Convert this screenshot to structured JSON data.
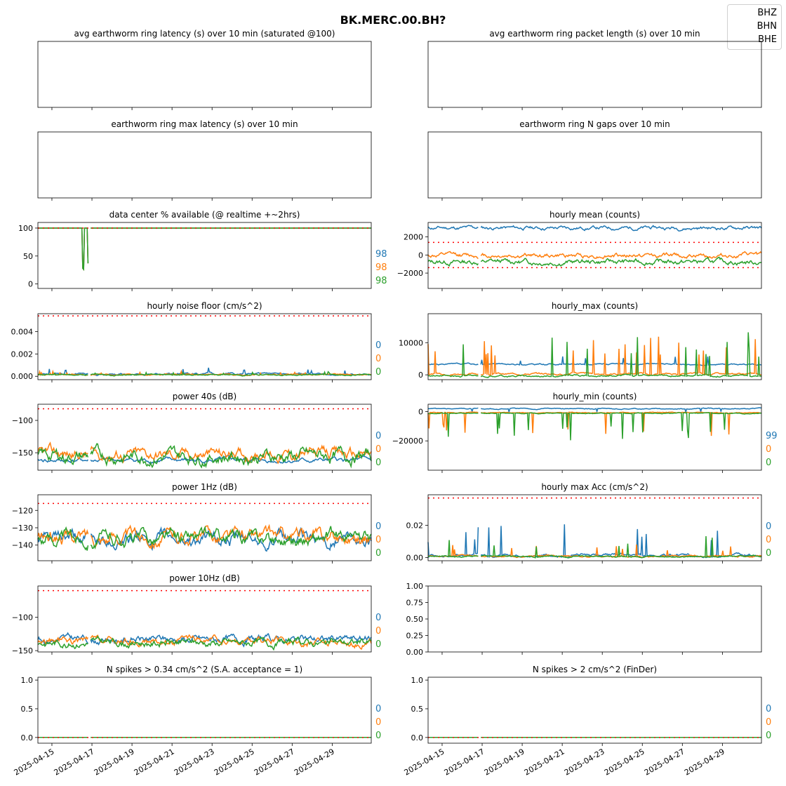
{
  "figure": {
    "title": "BK.MERC.00.BH?",
    "legend": [
      "BHZ",
      "BHN",
      "BHE"
    ],
    "colors": {
      "BHZ": "#1f77b4",
      "BHN": "#ff7f0e",
      "BHE": "#2ca02c",
      "threshold": "#ff0000"
    },
    "x_ticks": [
      "2025-04-15",
      "2025-04-17",
      "2025-04-19",
      "2025-04-21",
      "2025-04-23",
      "2025-04-25",
      "2025-04-27",
      "2025-04-29"
    ],
    "x_range": [
      "2025-04-14",
      "2025-04-30"
    ]
  },
  "chart_data": [
    {
      "id": "latency",
      "type": "line",
      "title": "avg earthworm ring latency (s)   over 10 min (saturated @100)",
      "row": 0,
      "col": 0,
      "yticks": [],
      "series": [],
      "percentages": []
    },
    {
      "id": "packet",
      "type": "line",
      "title": "avg earthworm ring packet length (s)   over 10 min",
      "row": 0,
      "col": 1,
      "yticks": [],
      "series": [],
      "percentages": []
    },
    {
      "id": "maxlat",
      "type": "line",
      "title": "earthworm ring max latency (s)   over 10 min",
      "row": 1,
      "col": 0,
      "yticks": [],
      "series": [],
      "percentages": []
    },
    {
      "id": "ngaps",
      "type": "line",
      "title": "earthworm ring N gaps   over 10 min",
      "row": 1,
      "col": 1,
      "yticks": [],
      "series": [],
      "percentages": []
    },
    {
      "id": "avail",
      "type": "line",
      "title": "data center % available (@ realtime +~2hrs)",
      "row": 2,
      "col": 0,
      "ylim": [
        -8,
        110
      ],
      "yticks": [
        "0",
        "50",
        "100"
      ],
      "ytick_values": [
        0,
        50,
        100
      ],
      "thresholds": [
        100
      ],
      "percentages": [
        "98",
        "98",
        "98"
      ],
      "series": [
        {
          "channel": "BHZ",
          "kind": "avail",
          "base": 100,
          "amp": 0,
          "seed": 1
        },
        {
          "channel": "BHN",
          "kind": "avail",
          "base": 100,
          "amp": 0,
          "seed": 2
        },
        {
          "channel": "BHE",
          "kind": "avail",
          "base": 100,
          "amp": 0,
          "seed": 3
        }
      ]
    },
    {
      "id": "hmean",
      "type": "line",
      "title": "hourly mean (counts)",
      "row": 2,
      "col": 1,
      "ylim": [
        -3700,
        3600
      ],
      "yticks": [
        "−2000",
        "0",
        "2000"
      ],
      "ytick_values": [
        -2000,
        0,
        2000
      ],
      "thresholds": [
        1400,
        -1400
      ],
      "percentages": [],
      "series": [
        {
          "channel": "BHZ",
          "kind": "smooth",
          "base": 3000,
          "amp": 180,
          "seed": 11
        },
        {
          "channel": "BHN",
          "kind": "smooth",
          "base": -50,
          "amp": 220,
          "seed": 12
        },
        {
          "channel": "BHE",
          "kind": "smooth",
          "base": -750,
          "amp": 250,
          "seed": 13
        }
      ]
    },
    {
      "id": "noise",
      "type": "line",
      "title": "hourly noise floor (cm/s^2)",
      "row": 3,
      "col": 0,
      "ylim": [
        -0.0003,
        0.0056
      ],
      "yticks": [
        "0.000",
        "0.002",
        "0.004"
      ],
      "ytick_values": [
        0,
        0.002,
        0.004
      ],
      "thresholds": [
        0.0054
      ],
      "percentages": [
        "0",
        "0",
        "0"
      ],
      "series": [
        {
          "channel": "BHZ",
          "kind": "spiky",
          "base": 0.0002,
          "amp": 8e-05,
          "spike": 0.0007,
          "seed": 21
        },
        {
          "channel": "BHN",
          "kind": "spiky",
          "base": 0.00015,
          "amp": 6e-05,
          "spike": 0.0003,
          "seed": 22
        },
        {
          "channel": "BHE",
          "kind": "spiky",
          "base": 0.00013,
          "amp": 5e-05,
          "spike": 0.0003,
          "seed": 23
        }
      ]
    },
    {
      "id": "hmax",
      "type": "line",
      "title": "hourly_max (counts)",
      "row": 3,
      "col": 1,
      "ylim": [
        -1500,
        19000
      ],
      "yticks": [
        "0",
        "10000"
      ],
      "ytick_values": [
        0,
        10000
      ],
      "thresholds": [],
      "percentages": [],
      "series": [
        {
          "channel": "BHZ",
          "kind": "spiky",
          "base": 3300,
          "amp": 200,
          "spike": 2500,
          "seed": 31
        },
        {
          "channel": "BHN",
          "kind": "spiky",
          "base": 300,
          "amp": 250,
          "spike": 12000,
          "seed": 32
        },
        {
          "channel": "BHE",
          "kind": "spiky",
          "base": -300,
          "amp": 250,
          "spike": 14000,
          "seed": 33
        }
      ]
    },
    {
      "id": "p40",
      "type": "line",
      "title": "power 40s (dB)",
      "row": 4,
      "col": 0,
      "ylim": [
        -177,
        -75
      ],
      "yticks": [
        "−150",
        "−100"
      ],
      "ytick_values": [
        -150,
        -100
      ],
      "thresholds": [
        -82
      ],
      "percentages": [
        "0",
        "0",
        "0"
      ],
      "series": [
        {
          "channel": "BHZ",
          "kind": "smooth",
          "base": -162,
          "amp": 3,
          "seed": 41
        },
        {
          "channel": "BHN",
          "kind": "smooth",
          "base": -152,
          "amp": 8,
          "seed": 42
        },
        {
          "channel": "BHE",
          "kind": "smooth",
          "base": -155,
          "amp": 9,
          "seed": 43
        }
      ]
    },
    {
      "id": "hmin",
      "type": "line",
      "title": "hourly_min (counts)",
      "row": 4,
      "col": 1,
      "ylim": [
        -40000,
        5000
      ],
      "yticks": [
        "−20000",
        "0"
      ],
      "ytick_values": [
        -20000,
        0
      ],
      "thresholds": [],
      "percentages": [
        "99",
        "0",
        "0"
      ],
      "series": [
        {
          "channel": "BHZ",
          "kind": "dip",
          "base": 2000,
          "amp": 300,
          "spike": 2500,
          "seed": 51
        },
        {
          "channel": "BHN",
          "kind": "dip",
          "base": -800,
          "amp": 250,
          "spike": 15000,
          "seed": 52
        },
        {
          "channel": "BHE",
          "kind": "dip",
          "base": -1200,
          "amp": 250,
          "spike": 17000,
          "seed": 53
        }
      ]
    },
    {
      "id": "p1hz",
      "type": "line",
      "title": "power 1Hz (dB)",
      "row": 5,
      "col": 0,
      "ylim": [
        -149,
        -111
      ],
      "yticks": [
        "−140",
        "−130",
        "−120"
      ],
      "ytick_values": [
        -140,
        -130,
        -120
      ],
      "thresholds": [
        -116
      ],
      "percentages": [
        "0",
        "0",
        "0"
      ],
      "series": [
        {
          "channel": "BHZ",
          "kind": "smooth",
          "base": -137,
          "amp": 3.5,
          "seed": 61
        },
        {
          "channel": "BHN",
          "kind": "smooth",
          "base": -135,
          "amp": 3.5,
          "seed": 62
        },
        {
          "channel": "BHE",
          "kind": "smooth",
          "base": -136,
          "amp": 3.5,
          "seed": 63
        }
      ]
    },
    {
      "id": "hmaxacc",
      "type": "line",
      "title": "hourly max Acc (cm/s^2)",
      "row": 5,
      "col": 1,
      "ylim": [
        -0.002,
        0.039
      ],
      "yticks": [
        "0.00",
        "0.02"
      ],
      "ytick_values": [
        0,
        0.02
      ],
      "thresholds": [
        0.037
      ],
      "percentages": [
        "0",
        "0",
        "0"
      ],
      "series": [
        {
          "channel": "BHZ",
          "kind": "spiky",
          "base": 0.0015,
          "amp": 0.0008,
          "spike": 0.02,
          "seed": 71
        },
        {
          "channel": "BHN",
          "kind": "spiky",
          "base": 0.0008,
          "amp": 0.0005,
          "spike": 0.008,
          "seed": 72
        },
        {
          "channel": "BHE",
          "kind": "spiky",
          "base": 0.0006,
          "amp": 0.0004,
          "spike": 0.015,
          "seed": 73
        }
      ]
    },
    {
      "id": "p10hz",
      "type": "line",
      "title": "power 10Hz (dB)",
      "row": 6,
      "col": 0,
      "ylim": [
        -152,
        -53
      ],
      "yticks": [
        "−150",
        "−100"
      ],
      "ytick_values": [
        -150,
        -100
      ],
      "thresholds": [
        -60
      ],
      "percentages": [
        "0",
        "0",
        "0"
      ],
      "series": [
        {
          "channel": "BHZ",
          "kind": "smooth",
          "base": -133,
          "amp": 5,
          "seed": 81
        },
        {
          "channel": "BHN",
          "kind": "smooth",
          "base": -136,
          "amp": 5,
          "seed": 82
        },
        {
          "channel": "BHE",
          "kind": "smooth",
          "base": -138,
          "amp": 5,
          "seed": 83
        }
      ]
    },
    {
      "id": "empty",
      "type": "line",
      "title": "",
      "row": 6,
      "col": 1,
      "ylim": [
        0,
        1
      ],
      "yticks": [
        "0.00",
        "0.25",
        "0.50",
        "0.75",
        "1.00"
      ],
      "ytick_values": [
        0,
        0.25,
        0.5,
        0.75,
        1
      ],
      "thresholds": [],
      "percentages": [],
      "series": []
    },
    {
      "id": "nspike034",
      "type": "line",
      "title": "N spikes > 0.34 cm/s^2 (S.A. acceptance = 1)",
      "row": 7,
      "col": 0,
      "ylim": [
        -0.1,
        1.05
      ],
      "yticks": [
        "0.0",
        "0.5",
        "1.0"
      ],
      "ytick_values": [
        0,
        0.5,
        1
      ],
      "thresholds": [
        0
      ],
      "percentages": [
        "0",
        "0",
        "0"
      ],
      "series": [
        {
          "channel": "BHZ",
          "kind": "flat",
          "base": 0,
          "amp": 0,
          "seed": 91
        },
        {
          "channel": "BHN",
          "kind": "flat",
          "base": 0,
          "amp": 0,
          "seed": 92
        },
        {
          "channel": "BHE",
          "kind": "flat",
          "base": 0,
          "amp": 0,
          "seed": 93
        }
      ]
    },
    {
      "id": "nspike2",
      "type": "line",
      "title": "N spikes > 2 cm/s^2 (FinDer)",
      "row": 7,
      "col": 1,
      "ylim": [
        -0.1,
        1.05
      ],
      "yticks": [
        "0.0",
        "0.5",
        "1.0"
      ],
      "ytick_values": [
        0,
        0.5,
        1
      ],
      "thresholds": [
        0
      ],
      "percentages": [
        "0",
        "0",
        "0"
      ],
      "series": [
        {
          "channel": "BHZ",
          "kind": "flat",
          "base": 0,
          "amp": 0,
          "seed": 101
        },
        {
          "channel": "BHN",
          "kind": "flat",
          "base": 0,
          "amp": 0,
          "seed": 102
        },
        {
          "channel": "BHE",
          "kind": "flat",
          "base": 0,
          "amp": 0,
          "seed": 103
        }
      ]
    }
  ]
}
